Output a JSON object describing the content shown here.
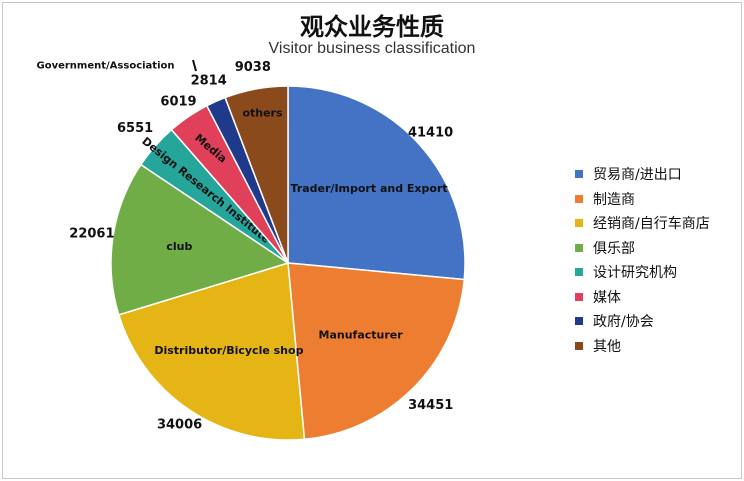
{
  "title": "观众业务性质",
  "subtitle": "Visitor business classification",
  "chart_data": {
    "type": "pie",
    "title": "观众业务性质",
    "subtitle": "Visitor business classification",
    "slices": [
      {
        "legend": "贸易商/进出口",
        "inner_label": "Trader/Import and Export",
        "value": 41410,
        "value_label": "41410",
        "color": "#4472C4"
      },
      {
        "legend": "制造商",
        "inner_label": "Manufacturer",
        "value": 34451,
        "value_label": "34451",
        "color": "#ED7D31"
      },
      {
        "legend": "经销商/自行车商店",
        "inner_label": "Distributor/Bicycle shop",
        "value": 34006,
        "value_label": "34006",
        "color": "#E5B516"
      },
      {
        "legend": "俱乐部",
        "inner_label": "club",
        "value": 22061,
        "value_label": "22061",
        "color": "#70AD47"
      },
      {
        "legend": "设计研究机构",
        "inner_label": "Design Research Institute",
        "value": 6551,
        "value_label": "6551",
        "color": "#26A69A"
      },
      {
        "legend": "媒体",
        "inner_label": "Media",
        "value": 6019,
        "value_label": "6019",
        "color": "#E0405A"
      },
      {
        "legend": "政府/协会",
        "inner_label": "Government/Association",
        "value": 2814,
        "value_label": "2814",
        "color": "#1F3A8A"
      },
      {
        "legend": "其他",
        "inner_label": "others",
        "value": 9038,
        "value_label": "9038",
        "color": "#8B4A1C"
      }
    ],
    "legend_position": "right"
  }
}
